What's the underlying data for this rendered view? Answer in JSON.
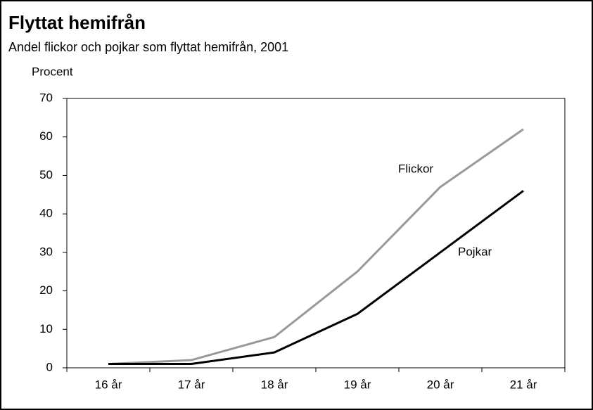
{
  "chart_data": {
    "type": "line",
    "title": "Flyttat hemifrån",
    "subtitle": "Andel flickor och pojkar som flyttat hemifrån, 2001",
    "y_axis_label": "Procent",
    "categories": [
      "16 år",
      "17 år",
      "18 år",
      "19 år",
      "20 år",
      "21 år"
    ],
    "series": [
      {
        "name": "Flickor",
        "color": "#999999",
        "values": [
          1,
          2,
          8,
          25,
          47,
          62
        ]
      },
      {
        "name": "Pojkar",
        "color": "#000000",
        "values": [
          1,
          1,
          4,
          14,
          30,
          46
        ]
      }
    ],
    "ylim": [
      0,
      70
    ],
    "yticks": [
      0,
      10,
      20,
      30,
      40,
      50,
      60,
      70
    ],
    "grid": false
  }
}
